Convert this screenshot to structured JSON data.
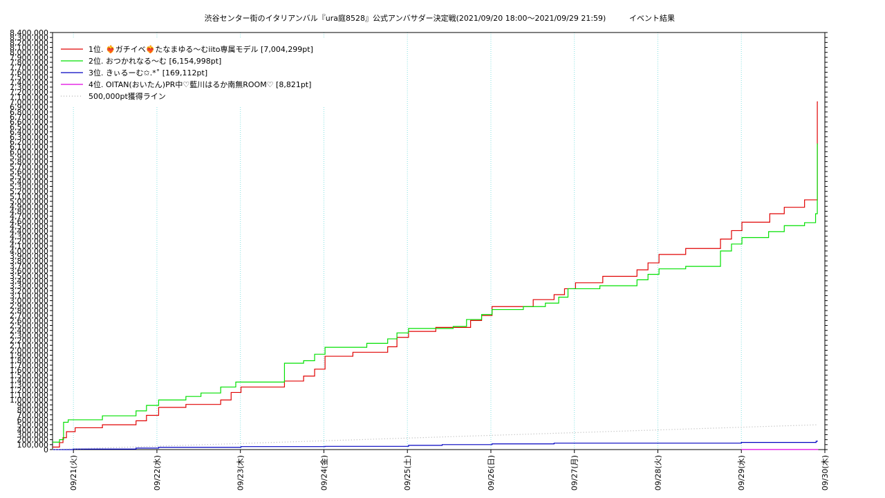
{
  "chart_data": {
    "type": "line",
    "title": "渋谷センター街のイタリアンバル『ura庭8528』公式アンバサダー決定戦(2021/09/20 18:00～2021/09/29 21:59)",
    "subtitle": "イベント結果",
    "xlim": [
      "09/20 18:00",
      "09/30 00:00"
    ],
    "xticks": [
      {
        "value": "09/21 00:00",
        "label": "09/21(火)"
      },
      {
        "value": "09/22 00:00",
        "label": "09/22(水)"
      },
      {
        "value": "09/23 00:00",
        "label": "09/23(木)"
      },
      {
        "value": "09/24 00:00",
        "label": "09/24(金)"
      },
      {
        "value": "09/25 00:00",
        "label": "09/25(土)"
      },
      {
        "value": "09/26 00:00",
        "label": "09/26(日)"
      },
      {
        "value": "09/27 00:00",
        "label": "09/27(月)"
      },
      {
        "value": "09/28 00:00",
        "label": "09/28(火)"
      },
      {
        "value": "09/29 00:00",
        "label": "09/29(水)"
      },
      {
        "value": "09/30 00:00",
        "label": "09/30(木)"
      }
    ],
    "ylim": [
      0,
      8400000
    ],
    "yticks": [
      0,
      {
        "value": 100000,
        "label": "100,000"
      },
      {
        "value": 200000,
        "label": "200,000"
      },
      {
        "value": 300000,
        "label": "300,000"
      },
      {
        "value": 400000,
        "label": "400,000"
      },
      {
        "value": 500000,
        "label": "500,000"
      },
      {
        "value": 600000,
        "label": "600,000"
      },
      {
        "value": 700000,
        "label": "700,000"
      },
      {
        "value": 800000,
        "label": "800,000"
      },
      {
        "value": 900000,
        "label": "900,000"
      },
      {
        "value": 1000000,
        "label": "1,000,000"
      },
      {
        "value": 1100000,
        "label": "1,100,000"
      },
      {
        "value": 1200000,
        "label": "1,200,000"
      },
      {
        "value": 1300000,
        "label": "1,300,000"
      },
      {
        "value": 1400000,
        "label": "1,400,000"
      },
      {
        "value": 1500000,
        "label": "1,500,000"
      },
      {
        "value": 1600000,
        "label": "1,600,000"
      },
      {
        "value": 1700000,
        "label": "1,700,000"
      },
      {
        "value": 1800000,
        "label": "1,800,000"
      },
      {
        "value": 1900000,
        "label": "1,900,000"
      },
      {
        "value": 2000000,
        "label": "2,000,000"
      },
      {
        "value": 2100000,
        "label": "2,100,000"
      },
      {
        "value": 2200000,
        "label": "2,200,000"
      },
      {
        "value": 2300000,
        "label": "2,300,000"
      },
      {
        "value": 2400000,
        "label": "2,400,000"
      },
      {
        "value": 2500000,
        "label": "2,500,000"
      },
      {
        "value": 2600000,
        "label": "2,600,000"
      },
      {
        "value": 2700000,
        "label": "2,700,000"
      },
      {
        "value": 2800000,
        "label": "2,800,000"
      },
      {
        "value": 2900000,
        "label": "2,900,000"
      },
      {
        "value": 3000000,
        "label": "3,000,000"
      },
      {
        "value": 3100000,
        "label": "3,100,000"
      },
      {
        "value": 3200000,
        "label": "3,200,000"
      },
      {
        "value": 3300000,
        "label": "3,300,000"
      },
      {
        "value": 3400000,
        "label": "3,400,000"
      },
      {
        "value": 3500000,
        "label": "3,500,000"
      },
      {
        "value": 3600000,
        "label": "3,600,000"
      },
      {
        "value": 3700000,
        "label": "3,700,000"
      },
      {
        "value": 3800000,
        "label": "3,800,000"
      },
      {
        "value": 3900000,
        "label": "3,900,000"
      },
      {
        "value": 4000000,
        "label": "4,000,000"
      },
      {
        "value": 4100000,
        "label": "4,100,000"
      },
      {
        "value": 4200000,
        "label": "4,200,000"
      },
      {
        "value": 4300000,
        "label": "4,300,000"
      },
      {
        "value": 4400000,
        "label": "4,400,000"
      },
      {
        "value": 4500000,
        "label": "4,500,000"
      },
      {
        "value": 4600000,
        "label": "4,600,000"
      },
      {
        "value": 4700000,
        "label": "4,700,000"
      },
      {
        "value": 4800000,
        "label": "4,800,000"
      },
      {
        "value": 4900000,
        "label": "4,900,000"
      },
      {
        "value": 5000000,
        "label": "5,000,000"
      },
      {
        "value": 5100000,
        "label": "5,100,000"
      },
      {
        "value": 5200000,
        "label": "5,200,000"
      },
      {
        "value": 5300000,
        "label": "5,300,000"
      },
      {
        "value": 5400000,
        "label": "5,400,000"
      },
      {
        "value": 5500000,
        "label": "5,500,000"
      },
      {
        "value": 5600000,
        "label": "5,600,000"
      },
      {
        "value": 5700000,
        "label": "5,700,000"
      },
      {
        "value": 5800000,
        "label": "5,800,000"
      },
      {
        "value": 5900000,
        "label": "5,900,000"
      },
      {
        "value": 6000000,
        "label": "6,000,000"
      },
      {
        "value": 6100000,
        "label": "6,100,000"
      },
      {
        "value": 6200000,
        "label": "6,200,000"
      },
      {
        "value": 6300000,
        "label": "6,300,000"
      },
      {
        "value": 6400000,
        "label": "6,400,000"
      },
      {
        "value": 6500000,
        "label": "6,500,000"
      },
      {
        "value": 6600000,
        "label": "6,600,000"
      },
      {
        "value": 6700000,
        "label": "6,700,000"
      },
      {
        "value": 6800000,
        "label": "6,800,000"
      },
      {
        "value": 6900000,
        "label": "6,900,000"
      },
      {
        "value": 7000000,
        "label": "7,000,000"
      },
      {
        "value": 7100000,
        "label": "7,100,000"
      },
      {
        "value": 7200000,
        "label": "7,200,000"
      },
      {
        "value": 7300000,
        "label": "7,300,000"
      },
      {
        "value": 7400000,
        "label": "7,400,000"
      },
      {
        "value": 7500000,
        "label": "7,500,000"
      },
      {
        "value": 7600000,
        "label": "7,600,000"
      },
      {
        "value": 7700000,
        "label": "7,700,000"
      },
      {
        "value": 7800000,
        "label": "7,800,000"
      },
      {
        "value": 7900000,
        "label": "7,900,000"
      },
      {
        "value": 8000000,
        "label": "8,000,000"
      },
      {
        "value": 8100000,
        "label": "8,100,000"
      },
      {
        "value": 8200000,
        "label": "8,200,000"
      },
      {
        "value": 8300000,
        "label": "8,300,000"
      },
      {
        "value": 8400000,
        "label": "8,400,000"
      }
    ],
    "grid": true,
    "legend": "upper left",
    "series": [
      {
        "name": "1位. ❤‍🔥ガチイベ❤‍🔥たなまゆる〜むiito専属モデル [7,004,299pt]",
        "color": "#e00000",
        "step": true,
        "x": [
          "09/20 18:00",
          "09/20 20:00",
          "09/20 21:00",
          "09/20 22:00",
          "09/21 00:30",
          "09/21 08:20",
          "09/21 18:00",
          "09/21 21:00",
          "09/22 00:30",
          "09/22 08:20",
          "09/22 18:20",
          "09/22 21:20",
          "09/23 00:10",
          "09/23 12:40",
          "09/23 18:10",
          "09/23 21:20",
          "09/24 00:20",
          "09/24 08:20",
          "09/24 18:20",
          "09/24 21:00",
          "09/25 00:20",
          "09/25 08:10",
          "09/25 18:10",
          "09/25 21:20",
          "09/26 00:20",
          "09/26 12:10",
          "09/26 18:10",
          "09/26 21:10",
          "09/27 00:20",
          "09/27 08:10",
          "09/27 18:00",
          "09/27 21:10",
          "09/28 00:20",
          "09/28 08:00",
          "09/28 18:00",
          "09/28 21:10",
          "09/29 00:10",
          "09/29 08:10",
          "09/29 12:20",
          "09/29 18:10",
          "09/29 21:50",
          "09/29 21:59"
        ],
        "values": [
          50000,
          140000,
          240000,
          360000,
          440000,
          500000,
          580000,
          690000,
          850000,
          910000,
          1000000,
          1150000,
          1260000,
          1380000,
          1480000,
          1620000,
          1880000,
          1960000,
          2070000,
          2260000,
          2380000,
          2460000,
          2600000,
          2700000,
          2880000,
          3020000,
          3120000,
          3240000,
          3360000,
          3490000,
          3620000,
          3760000,
          3930000,
          4050000,
          4240000,
          4410000,
          4580000,
          4750000,
          4880000,
          5030000,
          7004299,
          7004299
        ]
      },
      {
        "name": "2位. おつかれなる〜む [6,154,998pt]",
        "color": "#00e000",
        "step": true,
        "x": [
          "09/20 18:00",
          "09/20 20:00",
          "09/20 21:10",
          "09/20 22:30",
          "09/21 08:20",
          "09/21 18:00",
          "09/21 21:00",
          "09/22 00:30",
          "09/22 08:20",
          "09/22 12:40",
          "09/22 18:20",
          "09/22 22:40",
          "09/23 12:40",
          "09/23 18:10",
          "09/23 21:20",
          "09/24 00:20",
          "09/24 12:20",
          "09/24 18:20",
          "09/24 21:00",
          "09/25 00:20",
          "09/25 13:10",
          "09/25 17:00",
          "09/25 21:20",
          "09/26 00:20",
          "09/26 09:20",
          "09/26 15:40",
          "09/26 19:30",
          "09/26 22:10",
          "09/27 07:20",
          "09/27 18:00",
          "09/27 21:10",
          "09/28 00:20",
          "09/28 08:00",
          "09/28 18:00",
          "09/28 21:10",
          "09/29 00:10",
          "09/29 07:50",
          "09/29 12:20",
          "09/29 18:10",
          "09/29 21:20",
          "09/29 21:50",
          "09/29 21:59"
        ],
        "values": [
          150000,
          200000,
          550000,
          600000,
          680000,
          780000,
          890000,
          1000000,
          1070000,
          1140000,
          1260000,
          1360000,
          1740000,
          1790000,
          1920000,
          2060000,
          2140000,
          2230000,
          2350000,
          2440000,
          2480000,
          2620000,
          2720000,
          2820000,
          2880000,
          2950000,
          3070000,
          3240000,
          3300000,
          3420000,
          3530000,
          3640000,
          3690000,
          4000000,
          4140000,
          4270000,
          4390000,
          4510000,
          4570000,
          4750000,
          6154998,
          6154998
        ]
      },
      {
        "name": "3位. きぃるーむ✩.*˚ [169,112pt]",
        "color": "#0000c0",
        "step": true,
        "x": [
          "09/20 18:00",
          "09/21 00:00",
          "09/21 18:00",
          "09/22 00:30",
          "09/23 00:10",
          "09/24 00:20",
          "09/25 00:20",
          "09/25 10:00",
          "09/26 00:20",
          "09/26 18:10",
          "09/29 00:00",
          "09/29 21:30",
          "09/29 21:59"
        ],
        "values": [
          0,
          10000,
          30000,
          45000,
          60000,
          65000,
          85000,
          100000,
          115000,
          130000,
          145000,
          169112,
          169112
        ]
      },
      {
        "name": "4位. OITAN(おいたん)PR中♡藍川はるか南無ROOM♡ [8,821pt]",
        "color": "#e000e0",
        "step": true,
        "x": [
          "09/29 00:00",
          "09/29 21:59"
        ],
        "values": [
          2000,
          8821
        ]
      },
      {
        "name": "500,000pt獲得ライン",
        "color": "#b0b0b0",
        "step": false,
        "dash": "1,3",
        "x": [
          "09/20 18:00",
          "09/29 21:59"
        ],
        "values": [
          0,
          500000
        ]
      }
    ]
  }
}
